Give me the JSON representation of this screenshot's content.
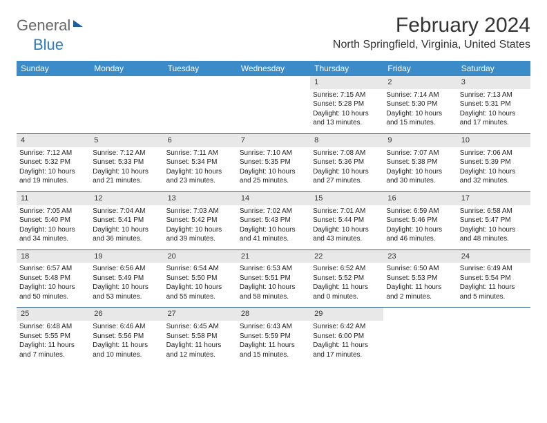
{
  "brand": {
    "part1": "General",
    "part2": "Blue"
  },
  "title": "February 2024",
  "location": "North Springfield, Virginia, United States",
  "colors": {
    "header_bg": "#3b8bc9",
    "header_text": "#ffffff",
    "daynum_bg": "#e8e8e8",
    "week_border": "#2a5a8a",
    "text": "#222222",
    "brand_gray": "#666666",
    "brand_blue": "#2b7bbf"
  },
  "daynames": [
    "Sunday",
    "Monday",
    "Tuesday",
    "Wednesday",
    "Thursday",
    "Friday",
    "Saturday"
  ],
  "weeks": [
    [
      null,
      null,
      null,
      null,
      {
        "n": "1",
        "sr": "7:15 AM",
        "ss": "5:28 PM",
        "dl": "10 hours and 13 minutes."
      },
      {
        "n": "2",
        "sr": "7:14 AM",
        "ss": "5:30 PM",
        "dl": "10 hours and 15 minutes."
      },
      {
        "n": "3",
        "sr": "7:13 AM",
        "ss": "5:31 PM",
        "dl": "10 hours and 17 minutes."
      }
    ],
    [
      {
        "n": "4",
        "sr": "7:12 AM",
        "ss": "5:32 PM",
        "dl": "10 hours and 19 minutes."
      },
      {
        "n": "5",
        "sr": "7:12 AM",
        "ss": "5:33 PM",
        "dl": "10 hours and 21 minutes."
      },
      {
        "n": "6",
        "sr": "7:11 AM",
        "ss": "5:34 PM",
        "dl": "10 hours and 23 minutes."
      },
      {
        "n": "7",
        "sr": "7:10 AM",
        "ss": "5:35 PM",
        "dl": "10 hours and 25 minutes."
      },
      {
        "n": "8",
        "sr": "7:08 AM",
        "ss": "5:36 PM",
        "dl": "10 hours and 27 minutes."
      },
      {
        "n": "9",
        "sr": "7:07 AM",
        "ss": "5:38 PM",
        "dl": "10 hours and 30 minutes."
      },
      {
        "n": "10",
        "sr": "7:06 AM",
        "ss": "5:39 PM",
        "dl": "10 hours and 32 minutes."
      }
    ],
    [
      {
        "n": "11",
        "sr": "7:05 AM",
        "ss": "5:40 PM",
        "dl": "10 hours and 34 minutes."
      },
      {
        "n": "12",
        "sr": "7:04 AM",
        "ss": "5:41 PM",
        "dl": "10 hours and 36 minutes."
      },
      {
        "n": "13",
        "sr": "7:03 AM",
        "ss": "5:42 PM",
        "dl": "10 hours and 39 minutes."
      },
      {
        "n": "14",
        "sr": "7:02 AM",
        "ss": "5:43 PM",
        "dl": "10 hours and 41 minutes."
      },
      {
        "n": "15",
        "sr": "7:01 AM",
        "ss": "5:44 PM",
        "dl": "10 hours and 43 minutes."
      },
      {
        "n": "16",
        "sr": "6:59 AM",
        "ss": "5:46 PM",
        "dl": "10 hours and 46 minutes."
      },
      {
        "n": "17",
        "sr": "6:58 AM",
        "ss": "5:47 PM",
        "dl": "10 hours and 48 minutes."
      }
    ],
    [
      {
        "n": "18",
        "sr": "6:57 AM",
        "ss": "5:48 PM",
        "dl": "10 hours and 50 minutes."
      },
      {
        "n": "19",
        "sr": "6:56 AM",
        "ss": "5:49 PM",
        "dl": "10 hours and 53 minutes."
      },
      {
        "n": "20",
        "sr": "6:54 AM",
        "ss": "5:50 PM",
        "dl": "10 hours and 55 minutes."
      },
      {
        "n": "21",
        "sr": "6:53 AM",
        "ss": "5:51 PM",
        "dl": "10 hours and 58 minutes."
      },
      {
        "n": "22",
        "sr": "6:52 AM",
        "ss": "5:52 PM",
        "dl": "11 hours and 0 minutes."
      },
      {
        "n": "23",
        "sr": "6:50 AM",
        "ss": "5:53 PM",
        "dl": "11 hours and 2 minutes."
      },
      {
        "n": "24",
        "sr": "6:49 AM",
        "ss": "5:54 PM",
        "dl": "11 hours and 5 minutes."
      }
    ],
    [
      {
        "n": "25",
        "sr": "6:48 AM",
        "ss": "5:55 PM",
        "dl": "11 hours and 7 minutes."
      },
      {
        "n": "26",
        "sr": "6:46 AM",
        "ss": "5:56 PM",
        "dl": "11 hours and 10 minutes."
      },
      {
        "n": "27",
        "sr": "6:45 AM",
        "ss": "5:58 PM",
        "dl": "11 hours and 12 minutes."
      },
      {
        "n": "28",
        "sr": "6:43 AM",
        "ss": "5:59 PM",
        "dl": "11 hours and 15 minutes."
      },
      {
        "n": "29",
        "sr": "6:42 AM",
        "ss": "6:00 PM",
        "dl": "11 hours and 17 minutes."
      },
      null,
      null
    ]
  ],
  "labels": {
    "sunrise": "Sunrise:",
    "sunset": "Sunset:",
    "daylight": "Daylight:"
  }
}
